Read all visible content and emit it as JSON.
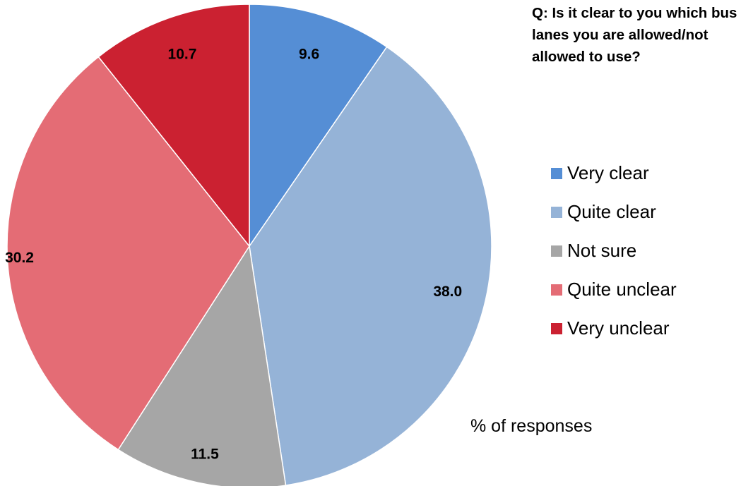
{
  "question": "Q: Is it clear to you which bus lanes you are allowed/not allowed to use?",
  "unit_note": "% of responses",
  "colors": {
    "very_clear": "#558ED5",
    "quite_clear": "#95B3D7",
    "not_sure": "#A6A6A6",
    "quite_unclear": "#E46C75",
    "very_unclear": "#CB2131",
    "slice_edge": "#ffffff"
  },
  "chart_data": {
    "type": "pie",
    "title": "Q: Is it clear to you which bus lanes you are allowed/not allowed to use?",
    "unit": "% of responses",
    "start": "12 o'clock",
    "direction": "clockwise",
    "legend_position": "right",
    "categories": [
      "Very clear",
      "Quite clear",
      "Not sure",
      "Quite unclear",
      "Very unclear"
    ],
    "values": [
      9.6,
      38.0,
      11.5,
      30.2,
      10.7
    ],
    "data_labels": [
      "9.6",
      "38.0",
      "11.5",
      "30.2",
      "10.7"
    ]
  },
  "legend": {
    "items": [
      {
        "label": "Very clear",
        "color": "#558ED5"
      },
      {
        "label": "Quite clear",
        "color": "#95B3D7"
      },
      {
        "label": "Not sure",
        "color": "#A6A6A6"
      },
      {
        "label": "Quite unclear",
        "color": "#E46C75"
      },
      {
        "label": "Very unclear",
        "color": "#CB2131"
      }
    ]
  }
}
